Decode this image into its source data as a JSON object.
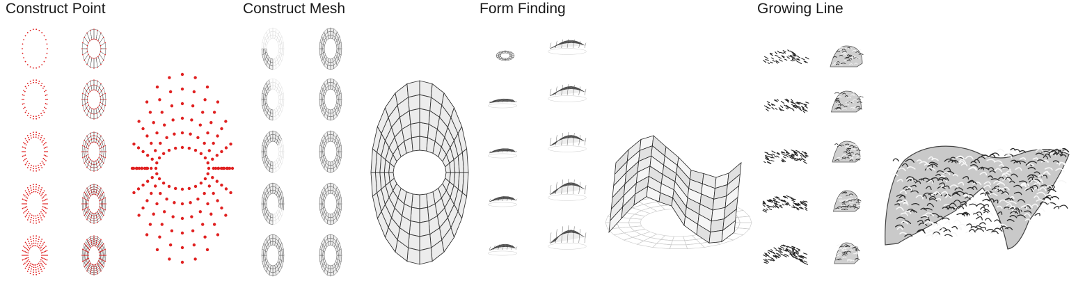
{
  "titles": {
    "construct_point": "Construct Point",
    "construct_mesh": "Construct Mesh",
    "form_finding": "Form Finding",
    "growing_line": "Growing Line"
  },
  "colors": {
    "point_red": "#e02020",
    "mesh_line": "#333333",
    "mesh_fill": "#ececec",
    "faint_line": "#bbbbbb",
    "growth_dark": "#444444",
    "growth_light": "#d4d4d4"
  }
}
